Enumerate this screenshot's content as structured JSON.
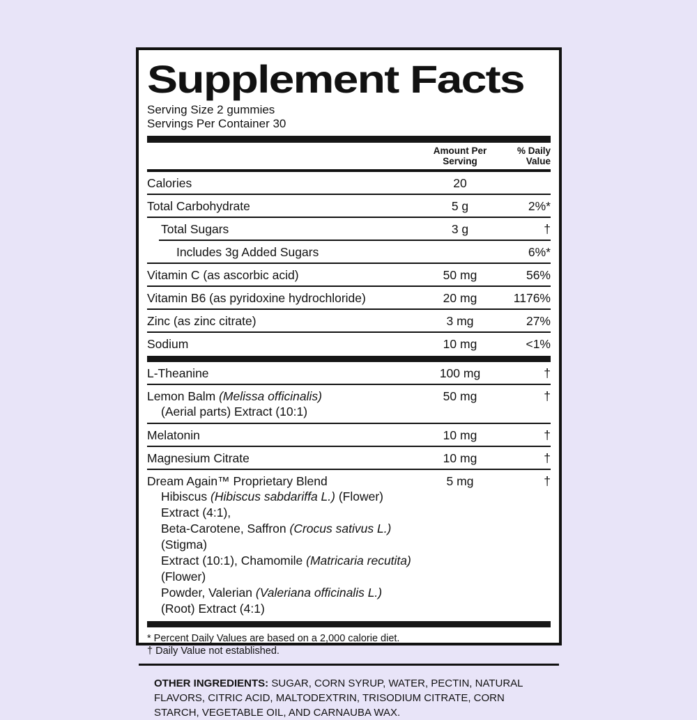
{
  "colors": {
    "page_background": "#e8e4f8",
    "panel_background": "#ffffff",
    "ink": "#111111"
  },
  "panel": {
    "title": "Supplement Facts",
    "serving_size": "Serving Size 2 gummies",
    "servings_per_container": "Servings Per Container 30",
    "columns": {
      "amount_line1": "Amount Per",
      "amount_line2": "Serving",
      "dv_line1": "% Daily",
      "dv_line2": "Value"
    }
  },
  "rows": [
    {
      "indent": 0,
      "segments": [
        {
          "t": "Calories"
        }
      ],
      "amount": "20",
      "dv": "",
      "rule": "hair",
      "rule_indent": 0
    },
    {
      "indent": 0,
      "segments": [
        {
          "t": "Total Carbohydrate"
        }
      ],
      "amount": "5 g",
      "dv": "2%*",
      "rule": "hair",
      "rule_indent": 0
    },
    {
      "indent": 1,
      "segments": [
        {
          "t": "Total Sugars"
        }
      ],
      "amount": "3 g",
      "dv": "†",
      "rule": "hair",
      "rule_indent": 17
    },
    {
      "indent": 2,
      "segments": [
        {
          "t": "Includes 3g Added Sugars"
        }
      ],
      "amount": "",
      "dv": "6%*",
      "rule": "hair",
      "rule_indent": 0
    },
    {
      "indent": 0,
      "segments": [
        {
          "t": "Vitamin C (as ascorbic acid)"
        }
      ],
      "amount": "50 mg",
      "dv": "56%",
      "rule": "hair",
      "rule_indent": 0
    },
    {
      "indent": 0,
      "segments": [
        {
          "t": "Vitamin B6 (as pyridoxine hydrochloride)"
        }
      ],
      "amount": "20 mg",
      "dv": "1176%",
      "rule": "hair",
      "rule_indent": 0
    },
    {
      "indent": 0,
      "segments": [
        {
          "t": "Zinc (as zinc citrate)"
        }
      ],
      "amount": "3 mg",
      "dv": "27%",
      "rule": "hair",
      "rule_indent": 0
    },
    {
      "indent": 0,
      "segments": [
        {
          "t": "Sodium"
        }
      ],
      "amount": "10 mg",
      "dv": "<1%",
      "rule": "thick",
      "rule_indent": 0
    },
    {
      "indent": 0,
      "segments": [
        {
          "t": "L-Theanine"
        }
      ],
      "amount": "100 mg",
      "dv": "†",
      "rule": "hair",
      "rule_indent": 0
    },
    {
      "indent": 0,
      "segments": [
        {
          "t": "Lemon Balm "
        },
        {
          "t": "(Melissa officinalis)",
          "italic": true
        }
      ],
      "amount": "50 mg",
      "dv": "†",
      "sub_lines": [
        [
          {
            "t": "(Aerial parts) Extract (10:1)"
          }
        ]
      ],
      "rule": "hair",
      "rule_indent": 0
    },
    {
      "indent": 0,
      "segments": [
        {
          "t": "Melatonin"
        }
      ],
      "amount": "10 mg",
      "dv": "†",
      "rule": "hair",
      "rule_indent": 0
    },
    {
      "indent": 0,
      "segments": [
        {
          "t": "Magnesium Citrate"
        }
      ],
      "amount": "10 mg",
      "dv": "†",
      "rule": "hair",
      "rule_indent": 0
    },
    {
      "indent": 0,
      "segments": [
        {
          "t": "Dream Again™ Proprietary Blend"
        }
      ],
      "amount": "5 mg",
      "dv": "†",
      "sub_lines": [
        [
          {
            "t": "Hibiscus "
          },
          {
            "t": "(Hibiscus sabdariffa L.)",
            "italic": true
          },
          {
            "t": " (Flower) Extract (4:1),"
          }
        ],
        [
          {
            "t": "Beta-Carotene, Saffron "
          },
          {
            "t": "(Crocus sativus L.)",
            "italic": true
          },
          {
            "t": " (Stigma)"
          }
        ],
        [
          {
            "t": "Extract (10:1), Chamomile "
          },
          {
            "t": "(Matricaria recutita)",
            "italic": true
          },
          {
            "t": " (Flower)"
          }
        ],
        [
          {
            "t": "Powder, Valerian "
          },
          {
            "t": "(Valeriana officinalis L.)",
            "italic": true
          },
          {
            "t": " (Root) Extract (4:1)"
          }
        ]
      ],
      "rule": "thick",
      "rule_indent": 0
    }
  ],
  "footnotes": [
    "* Percent Daily Values are based on a 2,000 calorie diet.",
    "† Daily Value not established."
  ],
  "other_ingredients": {
    "label": "OTHER INGREDIENTS:",
    "text": " SUGAR, CORN SYRUP, WATER, PECTIN, NATURAL FLAVORS, CITRIC ACID, MALTODEXTRIN, TRISODIUM CITRATE, CORN STARCH, VEGETABLE OIL, AND CARNAUBA WAX."
  }
}
